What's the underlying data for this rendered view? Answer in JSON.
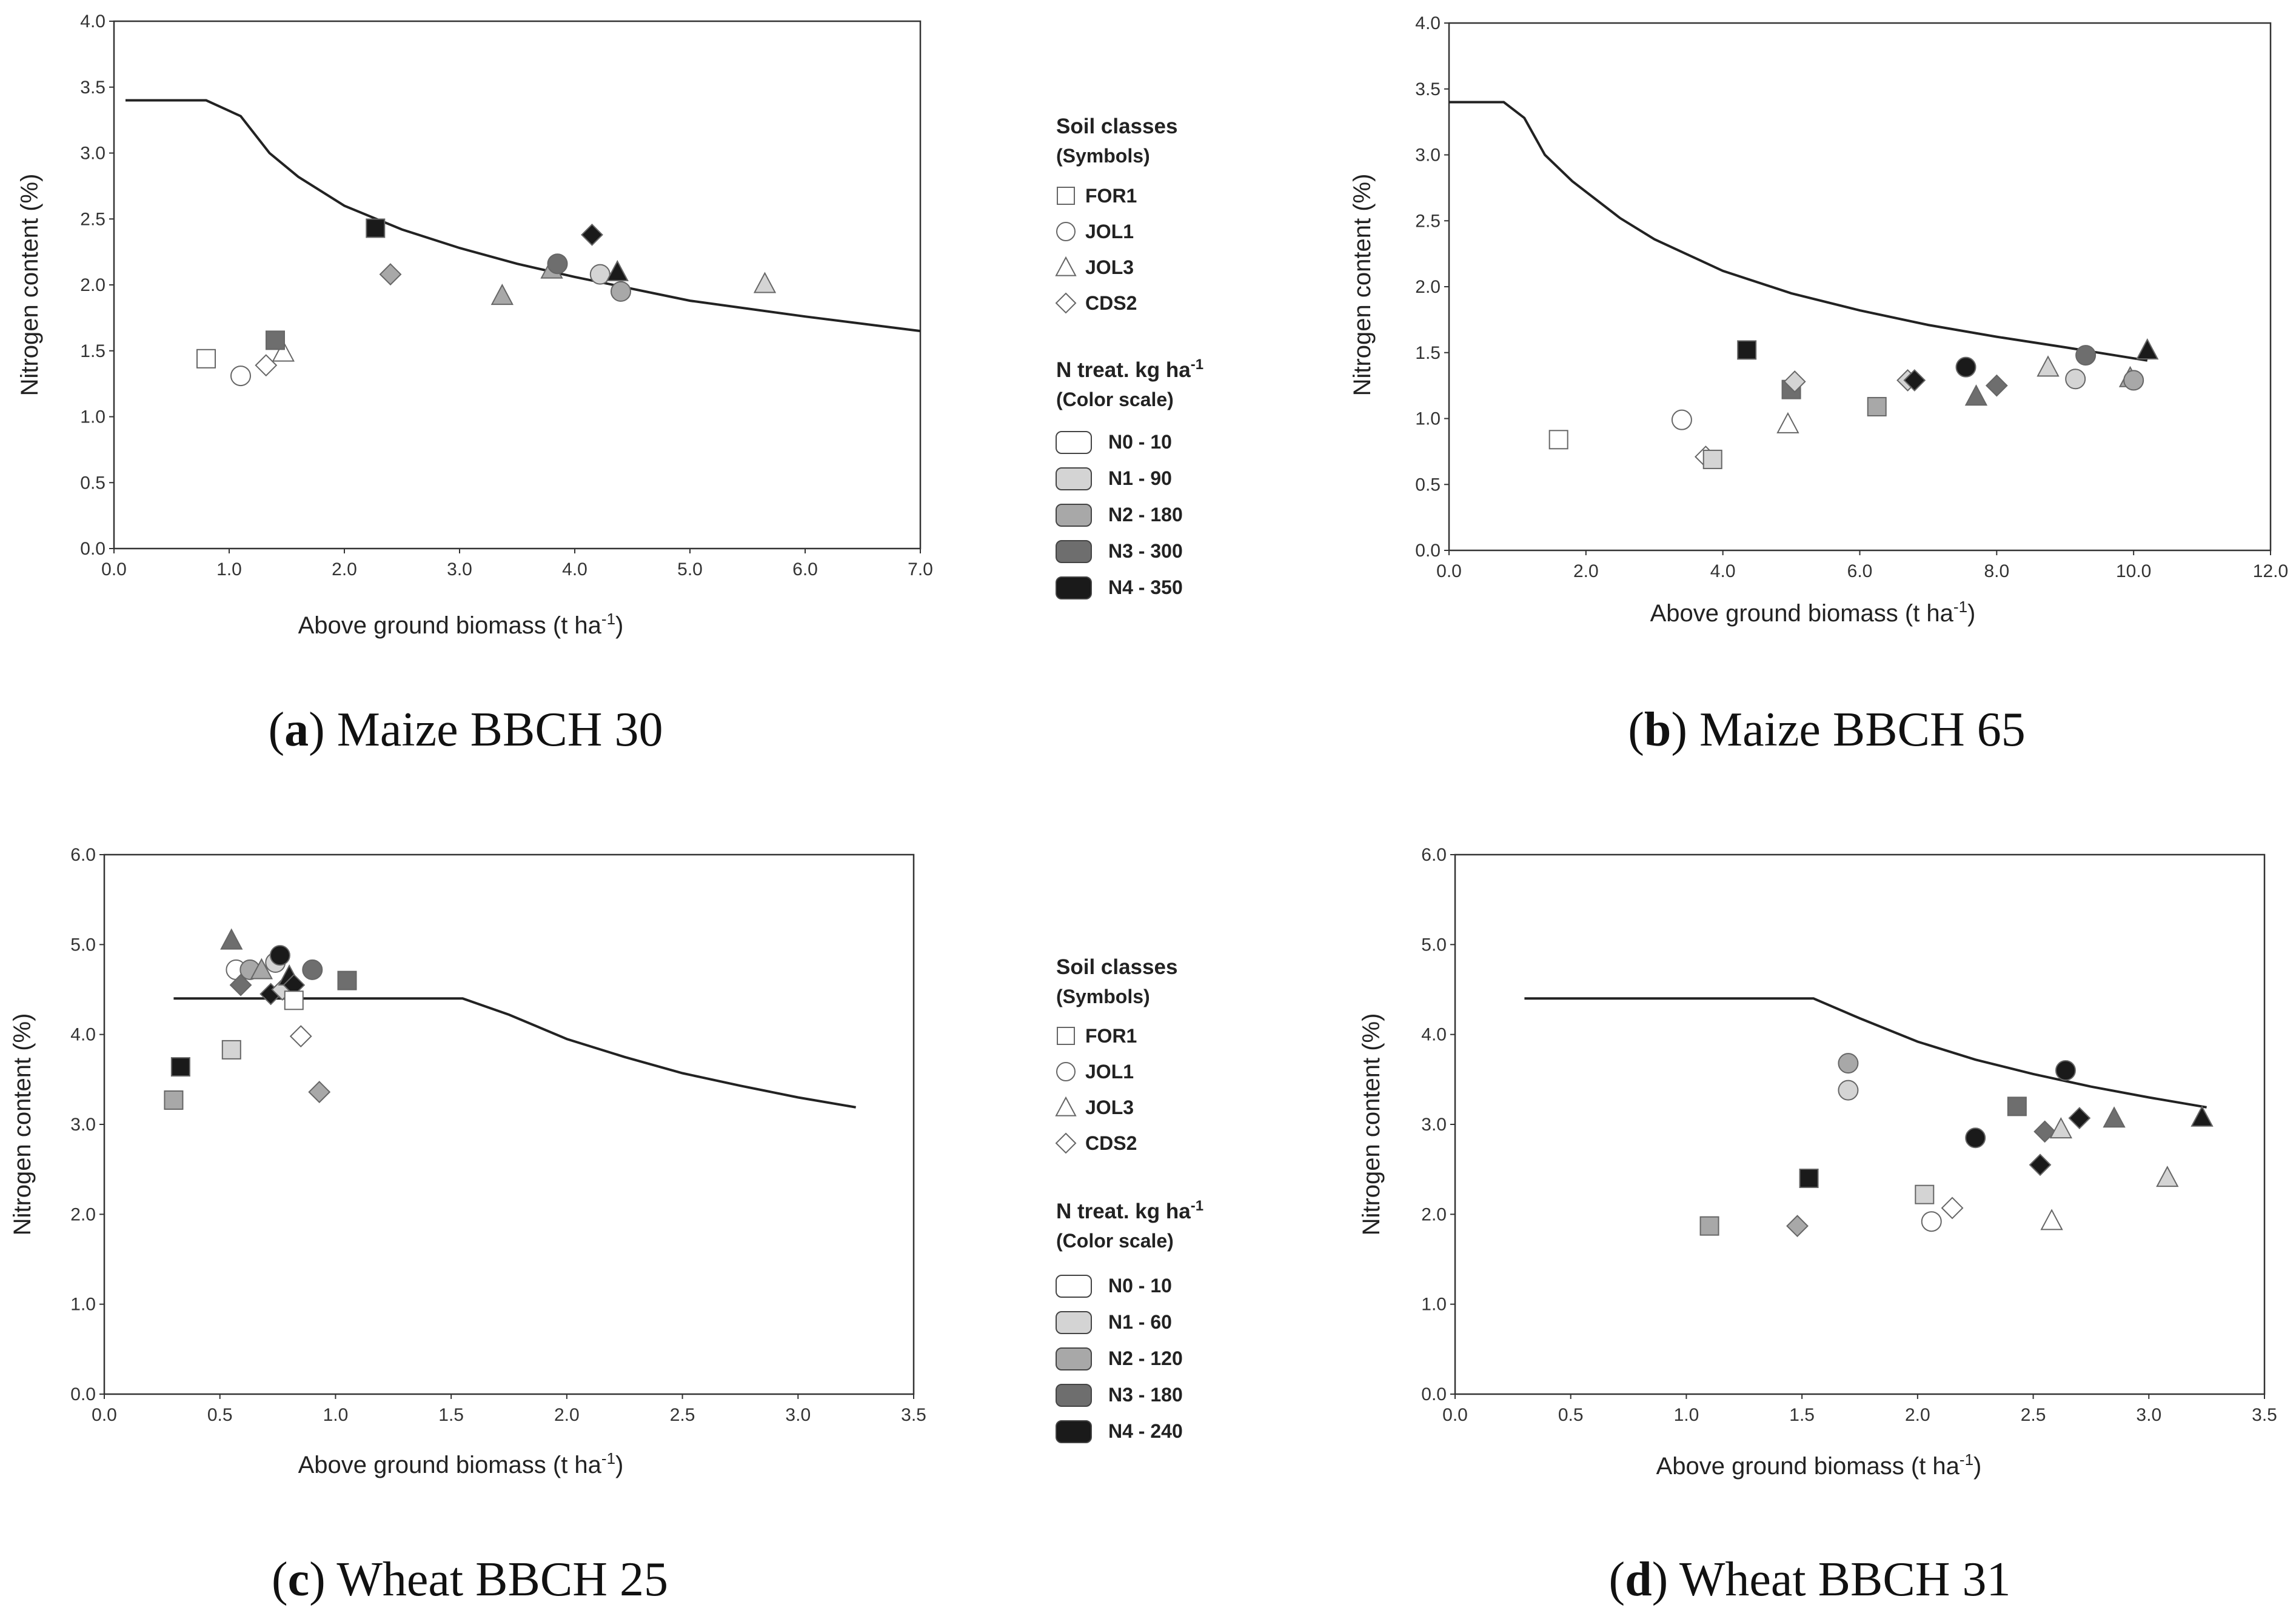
{
  "legend_top": {
    "soil_title": "Soil classes",
    "soil_sub": "(Symbols)",
    "soil": [
      {
        "label": "FOR1",
        "shape": "square"
      },
      {
        "label": "JOL1",
        "shape": "circle"
      },
      {
        "label": "JOL3",
        "shape": "triangle"
      },
      {
        "label": "CDS2",
        "shape": "diamond"
      }
    ],
    "n_title": "N treat. kg ha",
    "n_title_sup": "-1",
    "n_sub": "(Color scale)",
    "n": [
      {
        "label": "N0 - 10",
        "color": "#ffffff"
      },
      {
        "label": "N1 - 90",
        "color": "#d4d4d4"
      },
      {
        "label": "N2 - 180",
        "color": "#a8a8a8"
      },
      {
        "label": "N3 - 300",
        "color": "#6e6e6e"
      },
      {
        "label": "N4 - 350",
        "color": "#1a1a1a"
      }
    ]
  },
  "legend_bottom": {
    "soil_title": "Soil classes",
    "soil_sub": "(Symbols)",
    "soil": [
      {
        "label": "FOR1",
        "shape": "square"
      },
      {
        "label": "JOL1",
        "shape": "circle"
      },
      {
        "label": "JOL3",
        "shape": "triangle"
      },
      {
        "label": "CDS2",
        "shape": "diamond"
      }
    ],
    "n_title": "N treat. kg ha",
    "n_title_sup": "-1",
    "n_sub": "(Color scale)",
    "n": [
      {
        "label": "N0 - 10",
        "color": "#ffffff"
      },
      {
        "label": "N1 - 60",
        "color": "#d4d4d4"
      },
      {
        "label": "N2 - 120",
        "color": "#a8a8a8"
      },
      {
        "label": "N3 - 180",
        "color": "#6e6e6e"
      },
      {
        "label": "N4 - 240",
        "color": "#1a1a1a"
      }
    ]
  },
  "chart_data": [
    {
      "id": "a",
      "type": "scatter",
      "caption_letter": "a",
      "caption_text": " Maize BBCH 30",
      "xlabel": "Above ground biomass (t ha",
      "xlabel_sup": "-1",
      "xlabel_end": ")",
      "ylabel": "Nitrogen content (%)",
      "xlim": [
        0,
        7
      ],
      "ylim": [
        0,
        4
      ],
      "xticks": [
        "0.0",
        "1.0",
        "2.0",
        "3.0",
        "4.0",
        "5.0",
        "6.0",
        "7.0"
      ],
      "yticks": [
        "0.0",
        "0.5",
        "1.0",
        "1.5",
        "2.0",
        "2.5",
        "3.0",
        "3.5",
        "4.0"
      ],
      "curve": [
        [
          0.1,
          3.4
        ],
        [
          0.8,
          3.4
        ],
        [
          1.1,
          3.28
        ],
        [
          1.35,
          3.0
        ],
        [
          1.6,
          2.82
        ],
        [
          2.0,
          2.6
        ],
        [
          2.5,
          2.42
        ],
        [
          3.0,
          2.28
        ],
        [
          3.5,
          2.16
        ],
        [
          4.0,
          2.06
        ],
        [
          5.0,
          1.88
        ],
        [
          6.0,
          1.76
        ],
        [
          7.0,
          1.65
        ]
      ],
      "points": [
        {
          "x": 0.8,
          "y": 1.44,
          "shape": "square",
          "level": "N0"
        },
        {
          "x": 1.1,
          "y": 1.31,
          "shape": "circle",
          "level": "N0"
        },
        {
          "x": 1.32,
          "y": 1.39,
          "shape": "diamond",
          "level": "N0"
        },
        {
          "x": 1.47,
          "y": 1.49,
          "shape": "triangle",
          "level": "N0"
        },
        {
          "x": 1.4,
          "y": 1.58,
          "shape": "square",
          "level": "N3"
        },
        {
          "x": 2.27,
          "y": 2.43,
          "shape": "square",
          "level": "N4"
        },
        {
          "x": 2.4,
          "y": 2.08,
          "shape": "diamond",
          "level": "N2"
        },
        {
          "x": 3.37,
          "y": 1.92,
          "shape": "triangle",
          "level": "N2"
        },
        {
          "x": 3.8,
          "y": 2.12,
          "shape": "triangle",
          "level": "N2"
        },
        {
          "x": 3.85,
          "y": 2.16,
          "shape": "circle",
          "level": "N3"
        },
        {
          "x": 4.15,
          "y": 2.38,
          "shape": "diamond",
          "level": "N4"
        },
        {
          "x": 4.22,
          "y": 2.08,
          "shape": "circle",
          "level": "N1"
        },
        {
          "x": 4.37,
          "y": 2.1,
          "shape": "triangle",
          "level": "N4"
        },
        {
          "x": 4.4,
          "y": 1.95,
          "shape": "circle",
          "level": "N2"
        },
        {
          "x": 5.65,
          "y": 2.01,
          "shape": "triangle",
          "level": "N1"
        }
      ]
    },
    {
      "id": "b",
      "type": "scatter",
      "caption_letter": "b",
      "caption_text": " Maize BBCH 65",
      "xlabel": "Above ground biomass (t ha",
      "xlabel_sup": "-1",
      "xlabel_end": ")",
      "ylabel": "Nitrogen content (%)",
      "xlim": [
        0,
        12
      ],
      "ylim": [
        0,
        4
      ],
      "xticks": [
        "0.0",
        "2.0",
        "4.0",
        "6.0",
        "8.0",
        "10.0",
        "12.0"
      ],
      "yticks": [
        "0.0",
        "0.5",
        "1.0",
        "1.5",
        "2.0",
        "2.5",
        "3.0",
        "3.5",
        "4.0"
      ],
      "curve": [
        [
          0.0,
          3.4
        ],
        [
          0.8,
          3.4
        ],
        [
          1.1,
          3.28
        ],
        [
          1.4,
          3.0
        ],
        [
          1.8,
          2.8
        ],
        [
          2.5,
          2.52
        ],
        [
          3.0,
          2.36
        ],
        [
          4.0,
          2.12
        ],
        [
          5.0,
          1.95
        ],
        [
          6.0,
          1.82
        ],
        [
          7.0,
          1.71
        ],
        [
          8.0,
          1.62
        ],
        [
          9.0,
          1.54
        ],
        [
          10.2,
          1.44
        ]
      ],
      "points": [
        {
          "x": 1.6,
          "y": 0.84,
          "shape": "square",
          "level": "N0"
        },
        {
          "x": 3.4,
          "y": 0.99,
          "shape": "circle",
          "level": "N0"
        },
        {
          "x": 3.75,
          "y": 0.71,
          "shape": "diamond",
          "level": "N0"
        },
        {
          "x": 3.85,
          "y": 0.69,
          "shape": "square",
          "level": "N1"
        },
        {
          "x": 4.35,
          "y": 1.52,
          "shape": "square",
          "level": "N4"
        },
        {
          "x": 4.95,
          "y": 0.96,
          "shape": "triangle",
          "level": "N0"
        },
        {
          "x": 5.0,
          "y": 1.22,
          "shape": "square",
          "level": "N3"
        },
        {
          "x": 5.05,
          "y": 1.28,
          "shape": "diamond",
          "level": "N1"
        },
        {
          "x": 6.25,
          "y": 1.09,
          "shape": "square",
          "level": "N2"
        },
        {
          "x": 6.7,
          "y": 1.29,
          "shape": "diamond",
          "level": "N1"
        },
        {
          "x": 6.8,
          "y": 1.29,
          "shape": "diamond",
          "level": "N4"
        },
        {
          "x": 7.55,
          "y": 1.39,
          "shape": "circle",
          "level": "N4"
        },
        {
          "x": 7.7,
          "y": 1.17,
          "shape": "triangle",
          "level": "N3"
        },
        {
          "x": 8.0,
          "y": 1.25,
          "shape": "diamond",
          "level": "N3"
        },
        {
          "x": 8.75,
          "y": 1.39,
          "shape": "triangle",
          "level": "N1"
        },
        {
          "x": 9.15,
          "y": 1.3,
          "shape": "circle",
          "level": "N1"
        },
        {
          "x": 9.3,
          "y": 1.48,
          "shape": "circle",
          "level": "N3"
        },
        {
          "x": 9.95,
          "y": 1.31,
          "shape": "triangle",
          "level": "N2"
        },
        {
          "x": 10.0,
          "y": 1.29,
          "shape": "circle",
          "level": "N2"
        },
        {
          "x": 10.2,
          "y": 1.52,
          "shape": "triangle",
          "level": "N4"
        }
      ]
    },
    {
      "id": "c",
      "type": "scatter",
      "caption_letter": "c",
      "caption_text": " Wheat BBCH 25",
      "xlabel": "Above ground biomass (t ha",
      "xlabel_sup": "-1",
      "xlabel_end": ")",
      "ylabel": "Nitrogen content (%)",
      "xlim": [
        0,
        3.5
      ],
      "ylim": [
        0,
        6
      ],
      "xticks": [
        "0.0",
        "0.5",
        "1.0",
        "1.5",
        "2.0",
        "2.5",
        "3.0",
        "3.5"
      ],
      "yticks": [
        "0.0",
        "1.0",
        "2.0",
        "3.0",
        "4.0",
        "5.0",
        "6.0"
      ],
      "curve": [
        [
          0.3,
          4.4
        ],
        [
          1.55,
          4.4
        ],
        [
          1.75,
          4.22
        ],
        [
          2.0,
          3.95
        ],
        [
          2.25,
          3.75
        ],
        [
          2.5,
          3.57
        ],
        [
          2.75,
          3.43
        ],
        [
          3.0,
          3.3
        ],
        [
          3.25,
          3.19
        ]
      ],
      "points": [
        {
          "x": 0.3,
          "y": 3.27,
          "shape": "square",
          "level": "N2"
        },
        {
          "x": 0.33,
          "y": 3.64,
          "shape": "square",
          "level": "N4"
        },
        {
          "x": 0.55,
          "y": 3.83,
          "shape": "square",
          "level": "N1"
        },
        {
          "x": 0.55,
          "y": 5.05,
          "shape": "triangle",
          "level": "N3"
        },
        {
          "x": 0.57,
          "y": 4.72,
          "shape": "circle",
          "level": "N0"
        },
        {
          "x": 0.59,
          "y": 4.55,
          "shape": "diamond",
          "level": "N3"
        },
        {
          "x": 0.63,
          "y": 4.72,
          "shape": "circle",
          "level": "N2"
        },
        {
          "x": 0.68,
          "y": 4.72,
          "shape": "triangle",
          "level": "N2"
        },
        {
          "x": 0.72,
          "y": 4.45,
          "shape": "diamond",
          "level": "N4"
        },
        {
          "x": 0.74,
          "y": 4.8,
          "shape": "circle",
          "level": "N1"
        },
        {
          "x": 0.76,
          "y": 4.88,
          "shape": "circle",
          "level": "N4"
        },
        {
          "x": 0.77,
          "y": 4.5,
          "shape": "diamond",
          "level": "N1"
        },
        {
          "x": 0.8,
          "y": 4.65,
          "shape": "triangle",
          "level": "N4"
        },
        {
          "x": 0.82,
          "y": 4.55,
          "shape": "diamond",
          "level": "N4"
        },
        {
          "x": 0.82,
          "y": 4.38,
          "shape": "square",
          "level": "N0"
        },
        {
          "x": 0.85,
          "y": 3.98,
          "shape": "diamond",
          "level": "N0"
        },
        {
          "x": 0.9,
          "y": 4.72,
          "shape": "circle",
          "level": "N3"
        },
        {
          "x": 0.93,
          "y": 3.36,
          "shape": "diamond",
          "level": "N2"
        },
        {
          "x": 1.05,
          "y": 4.6,
          "shape": "square",
          "level": "N3"
        }
      ]
    },
    {
      "id": "d",
      "type": "scatter",
      "caption_letter": "d",
      "caption_text": " Wheat BBCH 31",
      "xlabel": "Above ground biomass (t ha",
      "xlabel_sup": "-1",
      "xlabel_end": ")",
      "ylabel": "Nitrogen content (%)",
      "xlim": [
        0,
        3.5
      ],
      "ylim": [
        0,
        6
      ],
      "xticks": [
        "0.0",
        "0.5",
        "1.0",
        "1.5",
        "2.0",
        "2.5",
        "3.0",
        "3.5"
      ],
      "yticks": [
        "0.0",
        "1.0",
        "2.0",
        "3.0",
        "4.0",
        "5.0",
        "6.0"
      ],
      "curve": [
        [
          0.3,
          4.4
        ],
        [
          1.55,
          4.4
        ],
        [
          1.75,
          4.18
        ],
        [
          2.0,
          3.92
        ],
        [
          2.25,
          3.72
        ],
        [
          2.5,
          3.56
        ],
        [
          2.75,
          3.42
        ],
        [
          3.0,
          3.3
        ],
        [
          3.25,
          3.19
        ]
      ],
      "points": [
        {
          "x": 1.1,
          "y": 1.87,
          "shape": "square",
          "level": "N2"
        },
        {
          "x": 1.48,
          "y": 1.87,
          "shape": "diamond",
          "level": "N2"
        },
        {
          "x": 1.53,
          "y": 2.4,
          "shape": "square",
          "level": "N4"
        },
        {
          "x": 1.7,
          "y": 3.68,
          "shape": "circle",
          "level": "N2"
        },
        {
          "x": 1.7,
          "y": 3.38,
          "shape": "circle",
          "level": "N1"
        },
        {
          "x": 2.03,
          "y": 2.22,
          "shape": "square",
          "level": "N1"
        },
        {
          "x": 2.06,
          "y": 1.92,
          "shape": "circle",
          "level": "N0"
        },
        {
          "x": 2.15,
          "y": 2.07,
          "shape": "diamond",
          "level": "N0"
        },
        {
          "x": 2.25,
          "y": 2.85,
          "shape": "circle",
          "level": "N4"
        },
        {
          "x": 2.43,
          "y": 3.2,
          "shape": "square",
          "level": "N3"
        },
        {
          "x": 2.53,
          "y": 2.55,
          "shape": "diamond",
          "level": "N4"
        },
        {
          "x": 2.55,
          "y": 2.92,
          "shape": "diamond",
          "level": "N3"
        },
        {
          "x": 2.58,
          "y": 1.93,
          "shape": "triangle",
          "level": "N0"
        },
        {
          "x": 2.62,
          "y": 2.95,
          "shape": "triangle",
          "level": "N1"
        },
        {
          "x": 2.64,
          "y": 3.6,
          "shape": "circle",
          "level": "N4"
        },
        {
          "x": 2.7,
          "y": 3.07,
          "shape": "diamond",
          "level": "N4"
        },
        {
          "x": 2.85,
          "y": 3.07,
          "shape": "triangle",
          "level": "N3"
        },
        {
          "x": 3.08,
          "y": 2.41,
          "shape": "triangle",
          "level": "N1"
        },
        {
          "x": 3.23,
          "y": 3.08,
          "shape": "triangle",
          "level": "N4"
        }
      ]
    }
  ]
}
